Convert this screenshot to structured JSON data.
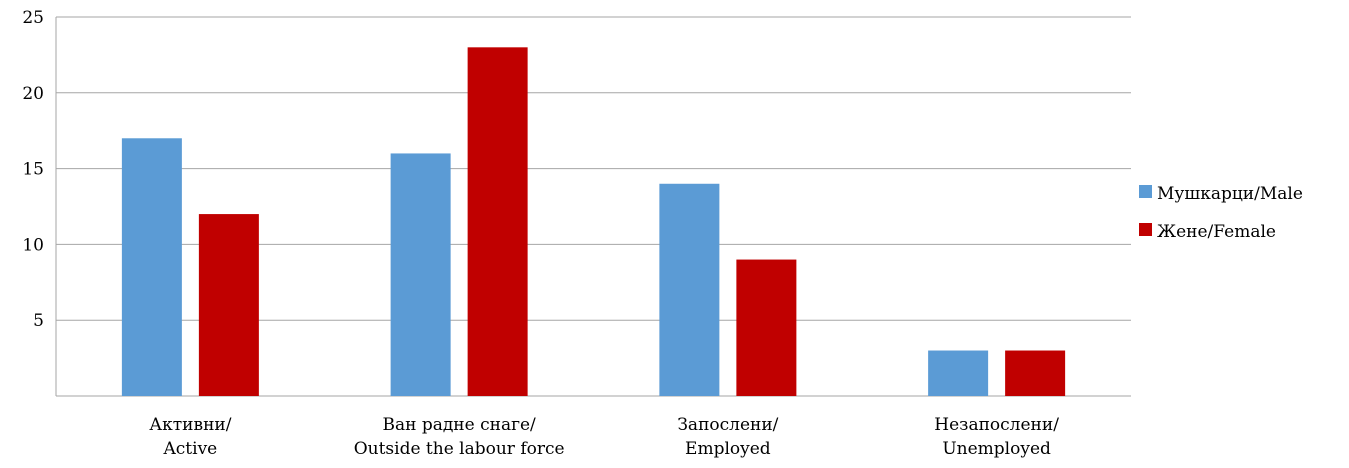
{
  "chart_data": {
    "type": "bar",
    "categories": [
      [
        "Активни/",
        "Active"
      ],
      [
        "Ван радне снаге/",
        "Outside the labour force"
      ],
      [
        "Запослени/",
        "Employed"
      ],
      [
        "Незапослени/",
        "Unemployed"
      ]
    ],
    "series": [
      {
        "name": "Мушкарци/Male",
        "color": "#5b9bd5",
        "values": [
          17,
          16,
          14,
          3
        ]
      },
      {
        "name": "Жене/Female",
        "color": "#c00000",
        "values": [
          12,
          23,
          9,
          3
        ]
      }
    ],
    "yticks": [
      "5",
      "10",
      "15",
      "20",
      "25"
    ],
    "ylim": [
      0,
      25
    ],
    "grid": true,
    "legend_position": "right",
    "gridline_color": "#a6a6a6"
  }
}
